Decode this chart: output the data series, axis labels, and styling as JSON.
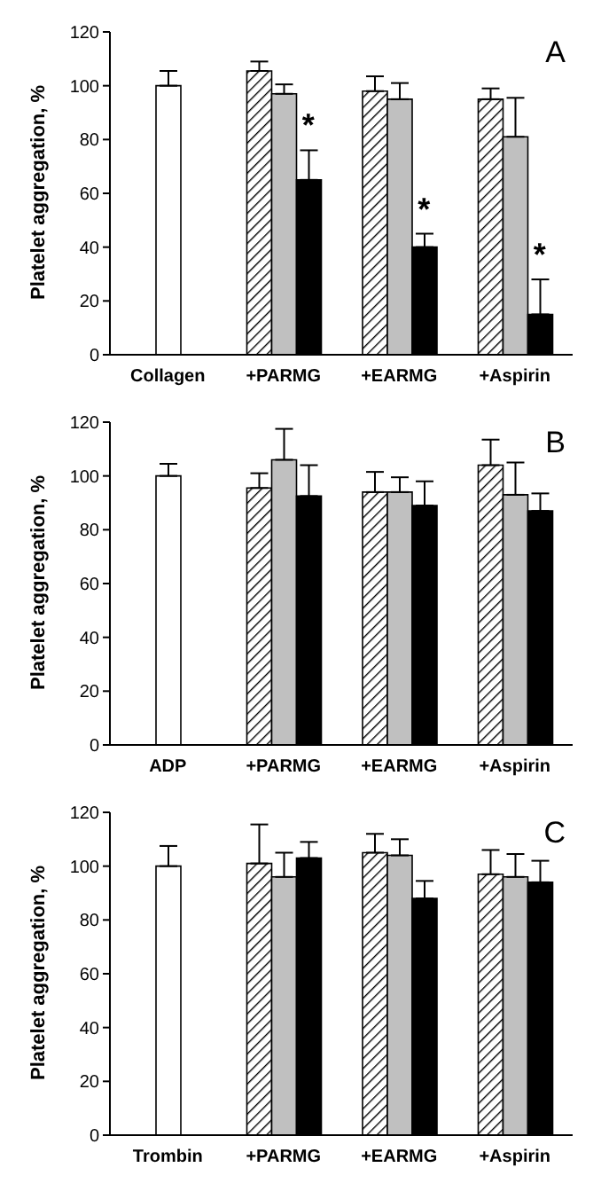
{
  "chart_data": [
    {
      "type": "bar",
      "ylabel": "Platelet aggregation, %",
      "categories": [
        "Collagen",
        "+PARMG",
        "+EARMG",
        "+Aspirin"
      ],
      "ylim": [
        0,
        120
      ],
      "yticks": [
        0,
        20,
        40,
        60,
        80,
        100,
        120
      ],
      "grid": false,
      "legend": false,
      "annotations": [
        "A",
        "*",
        "*",
        "*"
      ],
      "series": [
        {
          "color": "#ffffff",
          "values": [
            100,
            null,
            null,
            null
          ],
          "errors": [
            [
              100,
              105.5
            ],
            null,
            null,
            null
          ]
        },
        {
          "color": "#000000",
          "values": [
            null,
            105.5,
            98,
            95
          ],
          "errors": [
            null,
            [
              105.5,
              109
            ],
            [
              98,
              103.5
            ],
            [
              95,
              99
            ]
          ]
        },
        {
          "color": "#c0c0c0",
          "values": [
            null,
            97,
            95,
            81
          ],
          "errors": [
            null,
            [
              97,
              100.5
            ],
            [
              95,
              101
            ],
            [
              81,
              95.5
            ]
          ]
        },
        {
          "color": "#000000",
          "values": [
            null,
            65,
            40,
            15
          ],
          "errors": [
            null,
            [
              65,
              76
            ],
            [
              40,
              45
            ],
            [
              15,
              28
            ]
          ]
        }
      ]
    },
    {
      "type": "bar",
      "ylabel": "Platelet aggregation, %",
      "categories": [
        "ADP",
        "+PARMG",
        "+EARMG",
        "+Aspirin"
      ],
      "ylim": [
        0,
        120
      ],
      "yticks": [
        0,
        20,
        40,
        60,
        80,
        100,
        120
      ],
      "grid": false,
      "legend": false,
      "annotations": [
        "B"
      ],
      "series": [
        {
          "color": "#ffffff",
          "values": [
            100,
            null,
            null,
            null
          ],
          "errors": [
            [
              100,
              104.5
            ],
            null,
            null,
            null
          ]
        },
        {
          "color": "#000000",
          "values": [
            null,
            95.5,
            94,
            104
          ],
          "errors": [
            null,
            [
              95.5,
              101
            ],
            [
              94,
              101.5
            ],
            [
              104,
              113.5
            ]
          ]
        },
        {
          "color": "#c0c0c0",
          "values": [
            null,
            106,
            94,
            93
          ],
          "errors": [
            null,
            [
              106,
              117.5
            ],
            [
              94,
              99.5
            ],
            [
              93,
              105
            ]
          ]
        },
        {
          "color": "#000000",
          "values": [
            null,
            92.5,
            89,
            87
          ],
          "errors": [
            null,
            [
              92.5,
              104
            ],
            [
              89,
              98
            ],
            [
              87,
              93.5
            ]
          ]
        }
      ]
    },
    {
      "type": "bar",
      "ylabel": "Platelet aggregation, %",
      "categories": [
        "Trombin",
        "+PARMG",
        "+EARMG",
        "+Aspirin"
      ],
      "ylim": [
        0,
        120
      ],
      "yticks": [
        0,
        20,
        40,
        60,
        80,
        100,
        120
      ],
      "grid": false,
      "legend": false,
      "annotations": [
        "C"
      ],
      "series": [
        {
          "color": "#ffffff",
          "values": [
            100,
            null,
            null,
            null
          ],
          "errors": [
            [
              100,
              107.5
            ],
            null,
            null,
            null
          ]
        },
        {
          "color": "#000000",
          "values": [
            null,
            101,
            105,
            97
          ],
          "errors": [
            null,
            [
              101,
              115.5
            ],
            [
              105,
              112
            ],
            [
              97,
              106
            ]
          ]
        },
        {
          "color": "#c0c0c0",
          "values": [
            null,
            96,
            104,
            96
          ],
          "errors": [
            null,
            [
              96,
              105
            ],
            [
              104,
              110
            ],
            [
              96,
              104.5
            ]
          ]
        },
        {
          "color": "#000000",
          "values": [
            null,
            103,
            88,
            94
          ],
          "errors": [
            null,
            [
              103,
              109
            ],
            [
              88,
              94.5
            ],
            [
              94,
              102
            ]
          ]
        }
      ]
    }
  ]
}
